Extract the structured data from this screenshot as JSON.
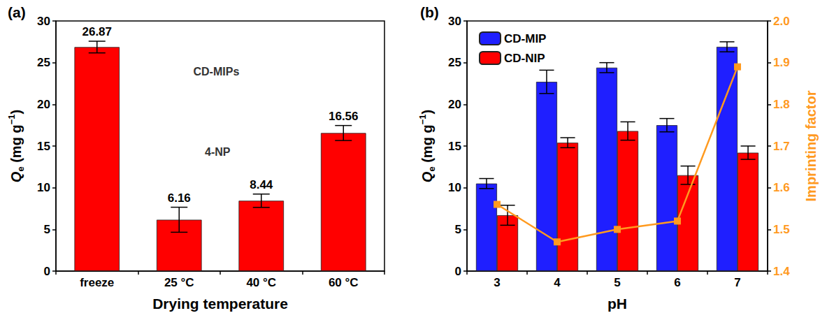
{
  "chart_data": [
    {
      "type": "bar",
      "title": "(a)",
      "x_label": "Drying temperature",
      "y_label": [
        {
          "text": "Q",
          "style": "italic"
        },
        {
          "text": "e",
          "style": "sub"
        },
        {
          "text": " (mg g"
        },
        {
          "text": "−1",
          "style": "sup"
        },
        {
          "text": ")"
        }
      ],
      "categories": [
        "freeze",
        "25 °C",
        "40 °C",
        "60 °C"
      ],
      "values": [
        26.87,
        6.16,
        8.44,
        16.56
      ],
      "errors": [
        0.7,
        1.5,
        0.8,
        0.9
      ],
      "color": "#ff0000",
      "ylim": [
        0,
        30
      ],
      "yticks": [
        0,
        5,
        10,
        15,
        20,
        25,
        30
      ],
      "data_labels": true,
      "grid": false,
      "annotations": [
        "CD-MIPs",
        "4-NP"
      ]
    },
    {
      "type": "bar",
      "title": "(b)",
      "x_label": "pH",
      "y_label": [
        {
          "text": "Q",
          "style": "italic"
        },
        {
          "text": "e",
          "style": "sub"
        },
        {
          "text": " (mg g"
        },
        {
          "text": "−1",
          "style": "sup"
        },
        {
          "text": ")"
        }
      ],
      "y2_label": "Imprinting factor",
      "categories": [
        "3",
        "4",
        "5",
        "6",
        "7"
      ],
      "series": [
        {
          "name": "CD-MIP",
          "color": "#1f1fff",
          "values": [
            10.5,
            22.7,
            24.4,
            17.5,
            26.9
          ],
          "errors": [
            0.6,
            1.4,
            0.6,
            0.8,
            0.6
          ]
        },
        {
          "name": "CD-NIP",
          "color": "#ff0000",
          "values": [
            6.7,
            15.4,
            16.8,
            11.5,
            14.2
          ],
          "errors": [
            1.2,
            0.6,
            1.1,
            1.1,
            0.8
          ]
        },
        {
          "type": "line",
          "axis": "y2",
          "color": "#ff9a1f",
          "marker": "square",
          "values": [
            1.56,
            1.47,
            1.5,
            1.52,
            1.89
          ]
        }
      ],
      "ylim": [
        0,
        30
      ],
      "yticks": [
        0,
        5,
        10,
        15,
        20,
        25,
        30
      ],
      "y2lim": [
        1.4,
        2
      ],
      "y2ticks": [
        1.4,
        1.5,
        1.6,
        1.7,
        1.8,
        1.9,
        {
          "value": 2,
          "label": "2.0"
        }
      ],
      "legend": "upper left",
      "grid": false
    }
  ]
}
